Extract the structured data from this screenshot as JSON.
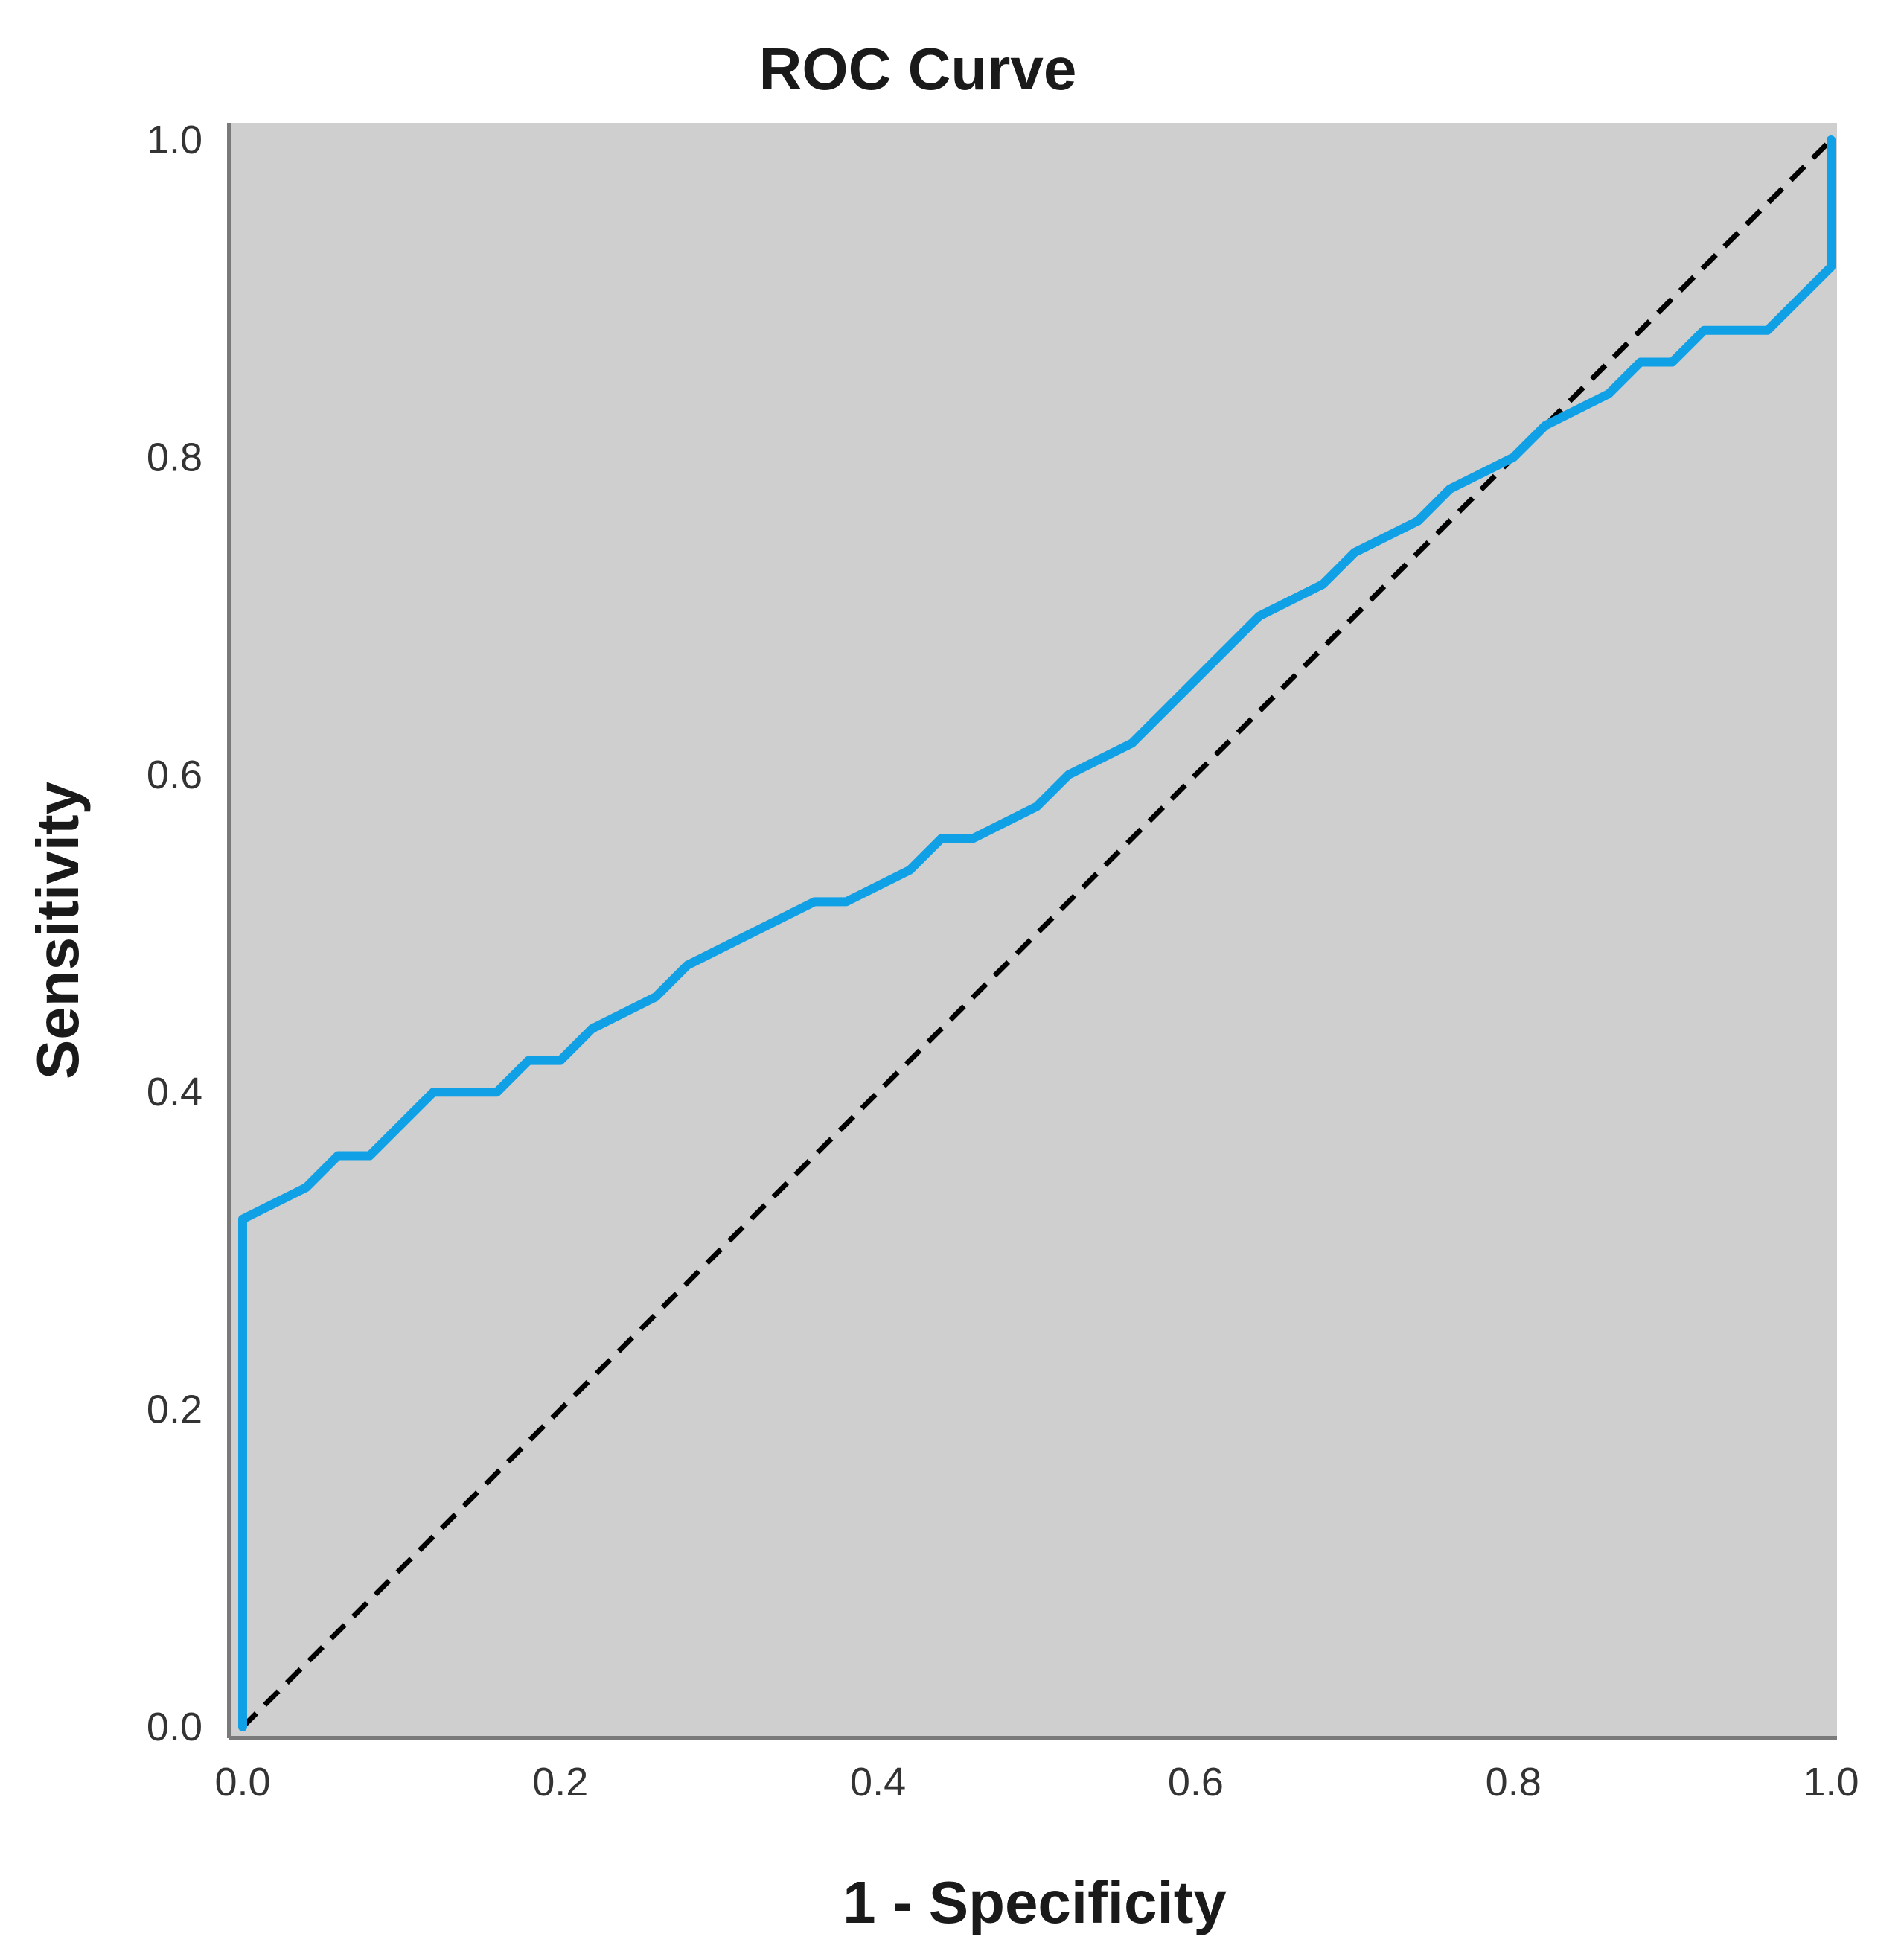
{
  "chart_data": {
    "type": "line",
    "title": "ROC Curve",
    "xlabel": "1 - Specificity",
    "ylabel": "Sensitivity",
    "xlim": [
      0,
      1
    ],
    "ylim": [
      0,
      1
    ],
    "x_ticks": [
      "0.0",
      "0.2",
      "0.4",
      "0.6",
      "0.8",
      "1.0"
    ],
    "y_ticks": [
      "0.0",
      "0.2",
      "0.4",
      "0.6",
      "0.8",
      "1.0"
    ],
    "grid": false,
    "legend": "none",
    "plot_background": "#cfcfcf",
    "series": [
      {
        "color": "#0fa0e6",
        "style": "solid",
        "x": [
          0.0,
          0.0,
          0.04,
          0.06,
          0.08,
          0.12,
          0.16,
          0.18,
          0.2,
          0.22,
          0.26,
          0.28,
          0.36,
          0.38,
          0.42,
          0.44,
          0.46,
          0.5,
          0.52,
          0.56,
          0.64,
          0.68,
          0.7,
          0.74,
          0.76,
          0.8,
          0.82,
          0.86,
          0.88,
          0.9,
          0.92,
          0.96,
          1.0,
          1.0
        ],
        "y": [
          0.0,
          0.32,
          0.34,
          0.36,
          0.36,
          0.4,
          0.4,
          0.42,
          0.42,
          0.44,
          0.46,
          0.48,
          0.52,
          0.52,
          0.54,
          0.56,
          0.56,
          0.58,
          0.6,
          0.62,
          0.7,
          0.72,
          0.74,
          0.76,
          0.78,
          0.8,
          0.82,
          0.84,
          0.86,
          0.86,
          0.88,
          0.88,
          0.92,
          1.0
        ]
      },
      {
        "color": "#000000",
        "style": "dashed",
        "x": [
          0,
          1
        ],
        "y": [
          0,
          1
        ]
      }
    ]
  }
}
